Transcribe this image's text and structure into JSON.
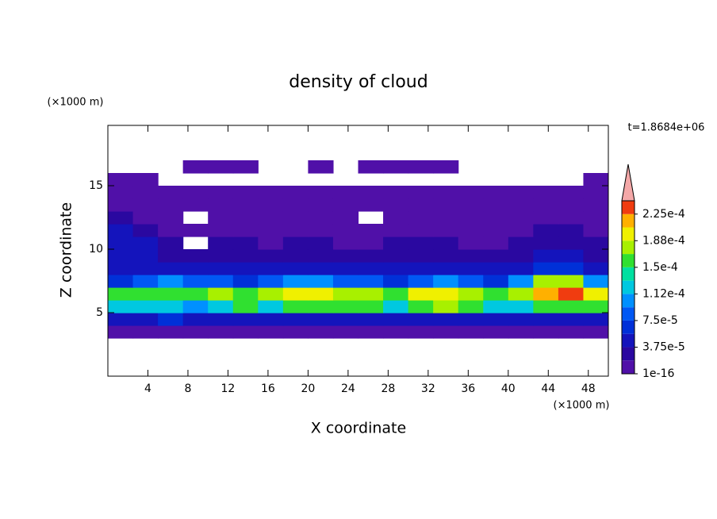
{
  "chart_data": {
    "type": "contour",
    "title": "density of cloud",
    "subtitle": "t=1.8684e+06",
    "x_label": "X coordinate",
    "y_label": "Z coordinate",
    "x_unit": "(×1000 m)",
    "y_unit": "(×1000 m)",
    "xlim": [
      0,
      50
    ],
    "ylim": [
      0,
      19.75
    ],
    "xticks": [
      4,
      8,
      12,
      16,
      20,
      24,
      28,
      32,
      36,
      40,
      44,
      48
    ],
    "yticks": [
      5,
      10,
      15
    ],
    "x": [
      1.25,
      3.75,
      6.25,
      8.75,
      11.25,
      13.75,
      16.25,
      18.75,
      21.25,
      23.75,
      26.25,
      28.75,
      31.25,
      33.75,
      36.25,
      38.75,
      41.25,
      43.75,
      46.25,
      48.75
    ],
    "y": [
      3.5,
      4.5,
      5.5,
      6.5,
      7.5,
      8.5,
      9.5,
      10.5,
      11.5,
      12.5,
      13.5,
      14.5,
      15.5,
      16.5
    ],
    "z": [
      [
        1e-05,
        1e-05,
        1e-05,
        1e-05,
        1e-05,
        1e-05,
        1e-05,
        1e-05,
        1e-05,
        1e-05,
        1e-05,
        1e-05,
        1e-05,
        1e-05,
        1e-05,
        1e-05,
        1e-05,
        1e-05,
        1e-05,
        1e-05
      ],
      [
        5e-05,
        5e-05,
        7e-05,
        5e-05,
        5e-05,
        5e-05,
        5e-05,
        5e-05,
        5e-05,
        5e-05,
        5e-05,
        5e-05,
        5e-05,
        5e-05,
        5e-05,
        5e-05,
        5e-05,
        5e-05,
        5e-05,
        5e-05
      ],
      [
        0.00013,
        0.00013,
        0.00013,
        0.00011,
        0.00013,
        0.00015,
        0.00013,
        0.00015,
        0.00015,
        0.00015,
        0.00015,
        0.00013,
        0.00015,
        0.00017,
        0.00015,
        0.00013,
        0.00013,
        0.00015,
        0.00015,
        0.00015
      ],
      [
        0.00015,
        0.00015,
        0.00015,
        0.00015,
        0.00017,
        0.00015,
        0.00017,
        0.00019,
        0.00019,
        0.00017,
        0.00017,
        0.00015,
        0.00019,
        0.00019,
        0.00017,
        0.00015,
        0.00017,
        0.00021,
        0.00023,
        0.00019
      ],
      [
        7e-05,
        9e-05,
        0.00011,
        9e-05,
        9e-05,
        7e-05,
        9e-05,
        0.00011,
        0.00011,
        9e-05,
        9e-05,
        7e-05,
        9e-05,
        0.00011,
        9e-05,
        7e-05,
        0.00011,
        0.00017,
        0.00017,
        0.00011
      ],
      [
        5e-05,
        5e-05,
        5e-05,
        5e-05,
        5e-05,
        5e-05,
        5e-05,
        5e-05,
        5e-05,
        5e-05,
        5e-05,
        5e-05,
        5e-05,
        5e-05,
        5e-05,
        5e-05,
        5e-05,
        7e-05,
        7e-05,
        5e-05
      ],
      [
        5e-05,
        5e-05,
        3e-05,
        3e-05,
        3e-05,
        3e-05,
        3e-05,
        3e-05,
        3e-05,
        3e-05,
        3e-05,
        3e-05,
        3e-05,
        3e-05,
        3e-05,
        3e-05,
        3e-05,
        5e-05,
        5e-05,
        3e-05
      ],
      [
        5e-05,
        5e-05,
        3e-05,
        null,
        3e-05,
        3e-05,
        1e-05,
        3e-05,
        3e-05,
        1e-05,
        1e-05,
        3e-05,
        3e-05,
        3e-05,
        1e-05,
        1e-05,
        3e-05,
        3e-05,
        3e-05,
        3e-05
      ],
      [
        5e-05,
        3e-05,
        1e-05,
        1e-05,
        1e-05,
        1e-05,
        1e-05,
        1e-05,
        1e-05,
        1e-05,
        1e-05,
        1e-05,
        1e-05,
        1e-05,
        1e-05,
        1e-05,
        1e-05,
        3e-05,
        3e-05,
        1e-05
      ],
      [
        3e-05,
        1e-05,
        1e-05,
        null,
        1e-05,
        1e-05,
        1e-05,
        1e-05,
        1e-05,
        1e-05,
        null,
        1e-05,
        1e-05,
        1e-05,
        1e-05,
        1e-05,
        1e-05,
        1e-05,
        1e-05,
        1e-05
      ],
      [
        1e-05,
        1e-05,
        1e-05,
        1e-05,
        1e-05,
        1e-05,
        1e-05,
        1e-05,
        1e-05,
        1e-05,
        1e-05,
        1e-05,
        1e-05,
        1e-05,
        1e-05,
        1e-05,
        1e-05,
        1e-05,
        1e-05,
        1e-05
      ],
      [
        1e-05,
        1e-05,
        1e-05,
        1e-05,
        1e-05,
        1e-05,
        1e-05,
        1e-05,
        1e-05,
        1e-05,
        1e-05,
        1e-05,
        1e-05,
        1e-05,
        1e-05,
        1e-05,
        1e-05,
        1e-05,
        1e-05,
        1e-05
      ],
      [
        1e-05,
        1e-05,
        null,
        null,
        null,
        null,
        null,
        null,
        null,
        null,
        null,
        null,
        null,
        null,
        null,
        null,
        null,
        null,
        null,
        1e-05
      ],
      [
        null,
        null,
        null,
        1e-05,
        1e-05,
        1e-05,
        null,
        null,
        1e-05,
        null,
        1e-05,
        1e-05,
        1e-05,
        1e-05,
        null,
        null,
        null,
        null,
        null,
        null
      ]
    ],
    "levels": [
      1e-16,
      1.875e-05,
      3.75e-05,
      5.625e-05,
      7.5e-05,
      9.375e-05,
      0.0001125,
      0.00013125,
      0.00015,
      0.00016875,
      0.0001875,
      0.00020625,
      0.000225,
      0.00024375
    ],
    "colors": [
      "#5010a8",
      "#2a08a0",
      "#1414bc",
      "#0030d8",
      "#0058f4",
      "#0090ff",
      "#00c8e0",
      "#00e0a0",
      "#30e030",
      "#a8f000",
      "#f0f000",
      "#ffb000",
      "#f03c10"
    ],
    "over_color": "#f4a8a8",
    "colorbar_ticks": [
      {
        "value": 1e-16,
        "label": "1e-16"
      },
      {
        "value": 3.75e-05,
        "label": "3.75e-5"
      },
      {
        "value": 7.5e-05,
        "label": "7.5e-5"
      },
      {
        "value": 0.0001125,
        "label": "1.12e-4"
      },
      {
        "value": 0.00015,
        "label": "1.5e-4"
      },
      {
        "value": 0.0001875,
        "label": "1.88e-4"
      },
      {
        "value": 0.000225,
        "label": "2.25e-4"
      }
    ]
  }
}
